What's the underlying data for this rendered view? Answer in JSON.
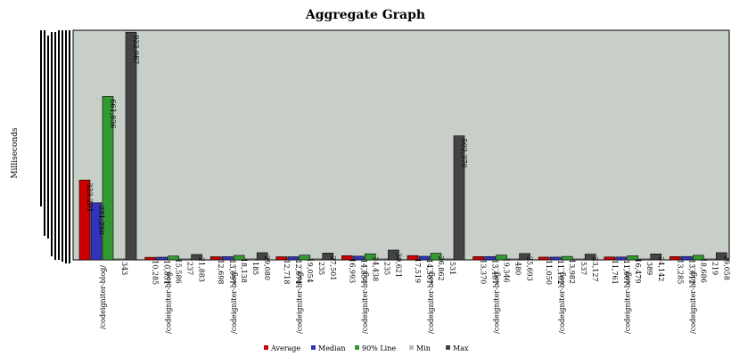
{
  "chart_data": {
    "type": "bar",
    "title": "Aggregate Graph",
    "ylabel": "Milliseconds",
    "xlabel": "",
    "ylim": [
      0,
      930000
    ],
    "legend_position": "bottom",
    "grid": false,
    "colors": {
      "Average": "#cc0000",
      "Median": "#3333bb",
      "90% Line": "#339933",
      "Min": "#bbbbbb",
      "Max": "#444444",
      "plot_bg": "#c8cec8"
    },
    "categories": [
      "/codeigniter-blog/",
      "/codeigniter-blog...",
      "/codeigniter-blog...",
      "/codeigniter-blog...",
      "/codeigniter-blog...",
      "/codeigniter-blog...",
      "/codeigniter-blog...",
      "/codeigniter-blog...",
      "/codeigniter-blog...",
      "/codeigniter-blog..."
    ],
    "series": [
      {
        "name": "Average",
        "values": [
          323201,
          10285,
          12698,
          12718,
          16993,
          17519,
          13370,
          11050,
          11761,
          13285
        ],
        "labels": [
          "323,201",
          "10,285",
          "12,698",
          "12,718",
          "16,993",
          "17,519",
          "13,370",
          "11,050",
          "11,761",
          "13,285"
        ]
      },
      {
        "name": "Median",
        "values": [
          231250,
          10851,
          13097,
          12674,
          14854,
          14507,
          13487,
          11102,
          11607,
          13612
        ],
        "labels": [
          "231,250",
          "10,851",
          "13,097",
          "12,674",
          "14,854",
          "14,507",
          "13,487",
          "11,102",
          "11,607",
          "13,612"
        ]
      },
      {
        "name": "90% Line",
        "values": [
          661836,
          15586,
          18138,
          19054,
          24438,
          26862,
          19346,
          13982,
          16479,
          18686
        ],
        "labels": [
          "661,836",
          "15,586",
          "18,138",
          "19,054",
          "24,438",
          "26,862",
          "19,346",
          "13,982",
          "16,479",
          "18,686"
        ]
      },
      {
        "name": "Min",
        "values": [
          343,
          237,
          185,
          235,
          235,
          531,
          480,
          537,
          389,
          219
        ],
        "labels": [
          "343",
          "237",
          "185",
          "235",
          "235",
          "531",
          "480",
          "537",
          "389",
          "219"
        ]
      },
      {
        "name": "Max",
        "values": [
          922087,
          21883,
          29080,
          27501,
          39621,
          502370,
          25693,
          23127,
          24142,
          29058
        ],
        "labels": [
          "922,087",
          "21,883",
          "29,080",
          "27,501",
          "39,621",
          "502,370",
          "25,693",
          "23,127",
          "24,142",
          "29,058"
        ]
      }
    ]
  }
}
